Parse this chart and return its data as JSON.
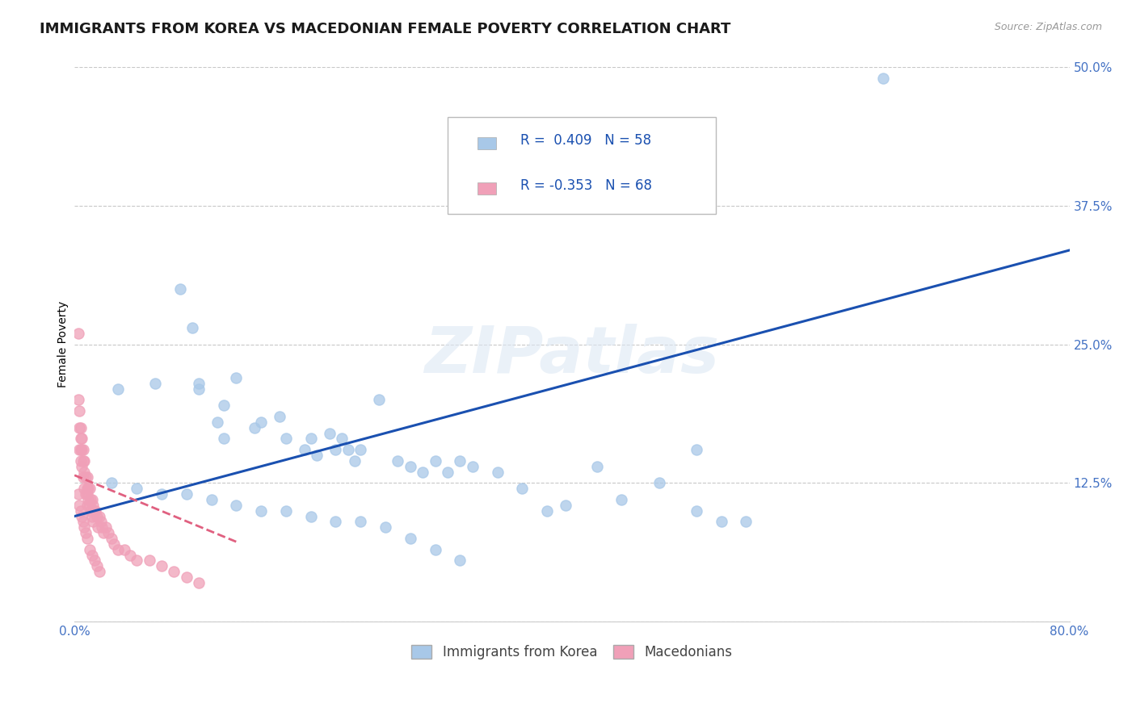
{
  "title": "IMMIGRANTS FROM KOREA VS MACEDONIAN FEMALE POVERTY CORRELATION CHART",
  "source": "Source: ZipAtlas.com",
  "ylabel": "Female Poverty",
  "xlim": [
    0,
    0.8
  ],
  "ylim": [
    0,
    0.5
  ],
  "yticks": [
    0.0,
    0.125,
    0.25,
    0.375,
    0.5
  ],
  "yticklabels": [
    "",
    "12.5%",
    "25.0%",
    "37.5%",
    "50.0%"
  ],
  "grid_color": "#c8c8c8",
  "background_color": "#ffffff",
  "watermark": "ZIPatlas",
  "korea_color": "#a8c8e8",
  "macedonia_color": "#f0a0b8",
  "korea_line_color": "#1a50b0",
  "macedonia_line_color": "#e06080",
  "legend_label1": "Immigrants from Korea",
  "legend_label2": "Macedonians",
  "tick_color": "#4472c4",
  "tick_fontsize": 11,
  "title_fontsize": 13,
  "korea_line_x0": 0.0,
  "korea_line_y0": 0.095,
  "korea_line_x1": 0.8,
  "korea_line_y1": 0.335,
  "mac_line_x0": 0.0,
  "mac_line_y0": 0.132,
  "mac_line_x1": 0.13,
  "mac_line_y1": 0.072,
  "korea_scatter_x": [
    0.035,
    0.065,
    0.085,
    0.095,
    0.1,
    0.1,
    0.115,
    0.12,
    0.12,
    0.13,
    0.145,
    0.15,
    0.165,
    0.17,
    0.185,
    0.19,
    0.195,
    0.205,
    0.21,
    0.215,
    0.22,
    0.225,
    0.23,
    0.245,
    0.26,
    0.27,
    0.28,
    0.29,
    0.3,
    0.31,
    0.32,
    0.34,
    0.36,
    0.38,
    0.395,
    0.42,
    0.44,
    0.47,
    0.5,
    0.5,
    0.52,
    0.54,
    0.65,
    0.03,
    0.05,
    0.07,
    0.09,
    0.11,
    0.13,
    0.15,
    0.17,
    0.19,
    0.21,
    0.23,
    0.25,
    0.27,
    0.29,
    0.31
  ],
  "korea_scatter_y": [
    0.21,
    0.215,
    0.3,
    0.265,
    0.21,
    0.215,
    0.18,
    0.165,
    0.195,
    0.22,
    0.175,
    0.18,
    0.185,
    0.165,
    0.155,
    0.165,
    0.15,
    0.17,
    0.155,
    0.165,
    0.155,
    0.145,
    0.155,
    0.2,
    0.145,
    0.14,
    0.135,
    0.145,
    0.135,
    0.145,
    0.14,
    0.135,
    0.12,
    0.1,
    0.105,
    0.14,
    0.11,
    0.125,
    0.155,
    0.1,
    0.09,
    0.09,
    0.49,
    0.125,
    0.12,
    0.115,
    0.115,
    0.11,
    0.105,
    0.1,
    0.1,
    0.095,
    0.09,
    0.09,
    0.085,
    0.075,
    0.065,
    0.055
  ],
  "macedonia_scatter_x": [
    0.003,
    0.003,
    0.004,
    0.004,
    0.004,
    0.005,
    0.005,
    0.005,
    0.005,
    0.006,
    0.006,
    0.006,
    0.007,
    0.007,
    0.007,
    0.008,
    0.008,
    0.008,
    0.009,
    0.009,
    0.01,
    0.01,
    0.01,
    0.01,
    0.011,
    0.011,
    0.012,
    0.012,
    0.013,
    0.013,
    0.014,
    0.014,
    0.015,
    0.015,
    0.016,
    0.017,
    0.018,
    0.019,
    0.02,
    0.021,
    0.022,
    0.023,
    0.025,
    0.027,
    0.03,
    0.032,
    0.035,
    0.04,
    0.045,
    0.05,
    0.06,
    0.07,
    0.08,
    0.09,
    0.1,
    0.003,
    0.004,
    0.005,
    0.006,
    0.007,
    0.008,
    0.009,
    0.01,
    0.012,
    0.014,
    0.016,
    0.018,
    0.02
  ],
  "macedonia_scatter_y": [
    0.26,
    0.2,
    0.19,
    0.175,
    0.155,
    0.175,
    0.165,
    0.155,
    0.145,
    0.165,
    0.155,
    0.14,
    0.155,
    0.145,
    0.13,
    0.145,
    0.135,
    0.12,
    0.13,
    0.115,
    0.13,
    0.12,
    0.115,
    0.105,
    0.12,
    0.11,
    0.12,
    0.105,
    0.11,
    0.1,
    0.11,
    0.095,
    0.105,
    0.09,
    0.1,
    0.1,
    0.095,
    0.085,
    0.095,
    0.09,
    0.085,
    0.08,
    0.085,
    0.08,
    0.075,
    0.07,
    0.065,
    0.065,
    0.06,
    0.055,
    0.055,
    0.05,
    0.045,
    0.04,
    0.035,
    0.115,
    0.105,
    0.1,
    0.095,
    0.09,
    0.085,
    0.08,
    0.075,
    0.065,
    0.06,
    0.055,
    0.05,
    0.045
  ]
}
